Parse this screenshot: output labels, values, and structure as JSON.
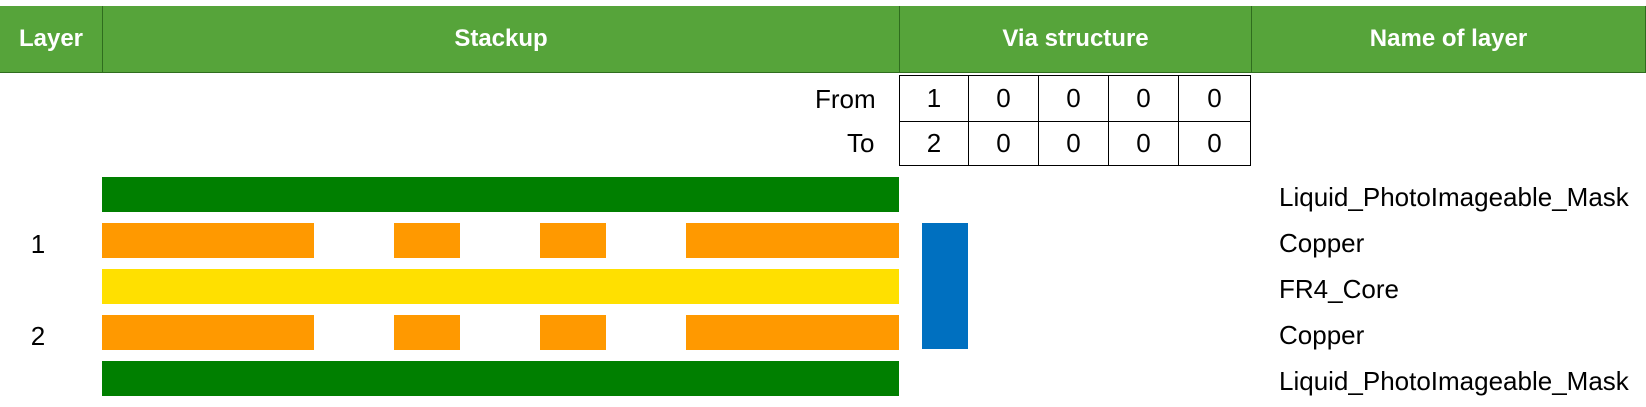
{
  "headers": {
    "layer": "Layer",
    "stackup": "Stackup",
    "via_structure": "Via structure",
    "name_of_layer": "Name of layer"
  },
  "via_table": {
    "from_label": "From",
    "to_label": "To",
    "from_values": [
      "1",
      "0",
      "0",
      "0",
      "0"
    ],
    "to_values": [
      "2",
      "0",
      "0",
      "0",
      "0"
    ]
  },
  "layers": [
    {
      "number": "",
      "material": "Liquid_PhotoImageable_Mask",
      "type": "mask"
    },
    {
      "number": "1",
      "material": "Copper",
      "type": "copper"
    },
    {
      "number": "",
      "material": "FR4_Core",
      "type": "core"
    },
    {
      "number": "2",
      "material": "Copper",
      "type": "copper"
    },
    {
      "number": "",
      "material": "Liquid_PhotoImageable_Mask",
      "type": "mask"
    }
  ],
  "colors": {
    "header_bg": "#56a43a",
    "mask": "#007f00",
    "copper": "#ff9900",
    "core": "#ffe000",
    "via": "#0070c0"
  }
}
